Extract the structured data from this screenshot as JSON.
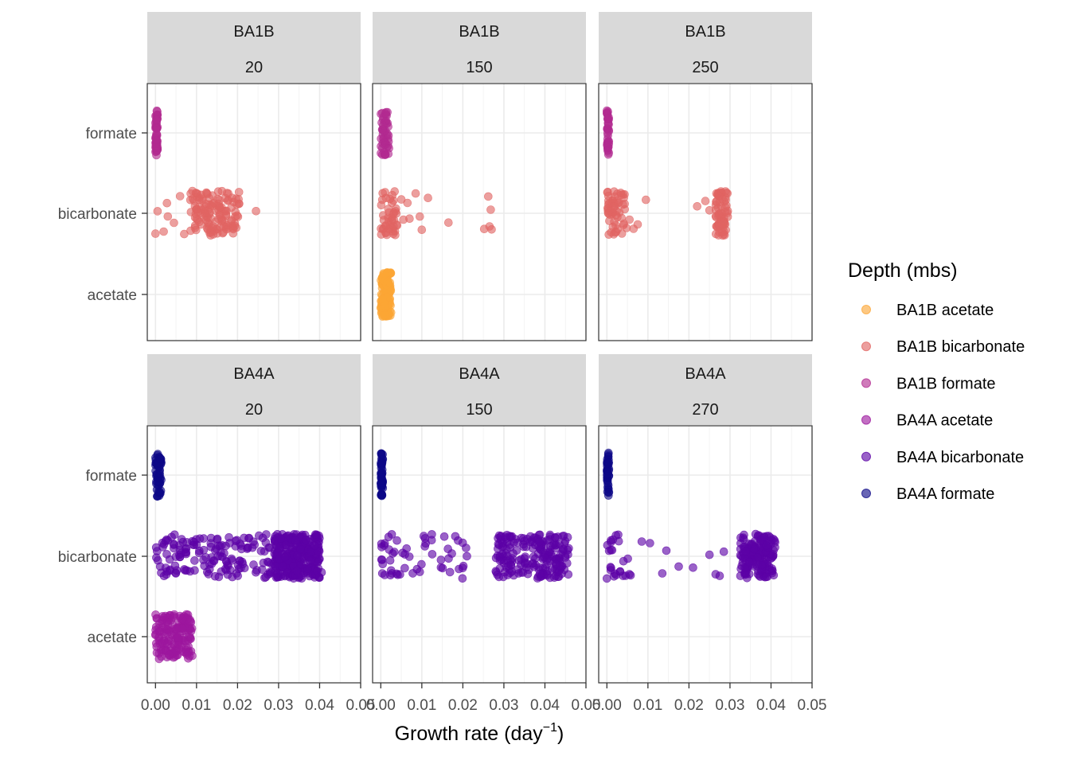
{
  "chart_data": {
    "type": "scatter",
    "xlabel": "Growth rate (day",
    "xlabel_sup": "−1",
    "xlabel_end": ")",
    "xlim": [
      -0.002,
      0.05
    ],
    "x_ticks": [
      "0.00",
      "0.01",
      "0.02",
      "0.03",
      "0.04",
      "0.05"
    ],
    "x_tick_values": [
      0,
      0.01,
      0.02,
      0.03,
      0.04,
      0.05
    ],
    "categories": [
      "acetate",
      "bicarbonate",
      "formate"
    ],
    "grid": true,
    "legend": {
      "title": "Depth (mbs)",
      "placement": "right",
      "entries": [
        {
          "label": "BA1B acetate",
          "color": "#FCA636"
        },
        {
          "label": "BA1B bicarbonate",
          "color": "#E16462"
        },
        {
          "label": "BA1B formate",
          "color": "#B12A90"
        },
        {
          "label": "BA4A acetate",
          "color": "#9C179E"
        },
        {
          "label": "BA4A bicarbonate",
          "color": "#5C01A6"
        },
        {
          "label": "BA4A formate",
          "color": "#0D0887"
        }
      ]
    },
    "panels": [
      {
        "site": "BA1B",
        "depth": "20",
        "series": [
          {
            "legend_entry": "BA1B formate",
            "category": "formate",
            "x_range": [
              0,
              0.0005
            ],
            "n": 60
          },
          {
            "legend_entry": "BA1B bicarbonate",
            "category": "bicarbonate",
            "sparse_x": [
              0,
              0.0005,
              0.002,
              0.003,
              0.007,
              0.006,
              0.0028,
              0.0045,
              0.009
            ],
            "x_range": [
              0.0085,
              0.0205
            ],
            "n": 130,
            "outliers": [
              0.0245
            ]
          }
        ]
      },
      {
        "site": "BA1B",
        "depth": "150",
        "series": [
          {
            "legend_entry": "BA1B formate",
            "category": "formate",
            "x_range": [
              0,
              0.002
            ],
            "n": 50
          },
          {
            "legend_entry": "BA1B bicarbonate",
            "category": "bicarbonate",
            "x_range": [
              0,
              0.004
            ],
            "n": 45,
            "sparse_x": [
              0.005,
              0.0055,
              0.0065,
              0.007,
              0.0085,
              0.0095,
              0.01,
              0.0115,
              0.0165,
              0.0252,
              0.0262,
              0.027,
              0.0265,
              0.0268
            ]
          },
          {
            "legend_entry": "BA1B acetate",
            "category": "acetate",
            "x_range": [
              0,
              0.0025
            ],
            "n": 140
          }
        ]
      },
      {
        "site": "BA1B",
        "depth": "250",
        "series": [
          {
            "legend_entry": "BA1B formate",
            "category": "formate",
            "x_range": [
              0,
              0.0005
            ],
            "n": 40
          },
          {
            "legend_entry": "BA1B bicarbonate",
            "category": "bicarbonate",
            "x_range": [
              0,
              0.0045
            ],
            "n": 55,
            "sparse_x": [
              0.0048,
              0.0065,
              0.0055,
              0.0075,
              0.0095,
              0.022,
              0.024,
              0.025
            ],
            "x_range_2": [
              0.0265,
              0.0295
            ],
            "n2": 70
          }
        ]
      },
      {
        "site": "BA4A",
        "depth": "20",
        "series": [
          {
            "legend_entry": "BA4A formate",
            "category": "formate",
            "x_range": [
              0,
              0.0015
            ],
            "n": 60
          },
          {
            "legend_entry": "BA4A bicarbonate",
            "category": "bicarbonate",
            "x_range": [
              0,
              0.03
            ],
            "n": 160,
            "x_range_2": [
              0.029,
              0.04
            ],
            "n2": 300,
            "outliers": [
              0.0405
            ]
          },
          {
            "legend_entry": "BA4A acetate",
            "category": "acetate",
            "x_range": [
              0,
              0.009
            ],
            "n": 160
          }
        ]
      },
      {
        "site": "BA4A",
        "depth": "150",
        "series": [
          {
            "legend_entry": "BA4A formate",
            "category": "formate",
            "x_range": [
              0,
              0.0005
            ],
            "n": 50
          },
          {
            "legend_entry": "BA4A bicarbonate",
            "category": "bicarbonate",
            "x_range": [
              0,
              0.022
            ],
            "n": 55,
            "x_range_2": [
              0.028,
              0.046
            ],
            "n2": 200
          }
        ]
      },
      {
        "site": "BA4A",
        "depth": "270",
        "series": [
          {
            "legend_entry": "BA4A formate",
            "category": "formate",
            "x_range": [
              0,
              0.0005
            ],
            "n": 40
          },
          {
            "legend_entry": "BA4A bicarbonate",
            "category": "bicarbonate",
            "x_range": [
              0,
              0.006
            ],
            "n": 25,
            "sparse_x": [
              0.0085,
              0.0105,
              0.0135,
              0.0145,
              0.0175,
              0.021,
              0.025,
              0.0265,
              0.0275,
              0.0285
            ],
            "x_range_2": [
              0.0325,
              0.041
            ],
            "n2": 160
          }
        ]
      }
    ]
  }
}
